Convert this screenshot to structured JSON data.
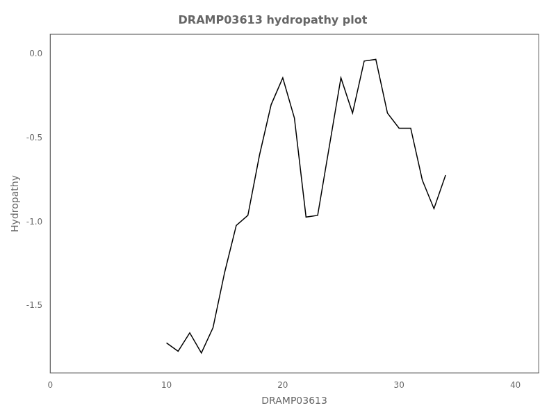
{
  "chart_data": {
    "type": "line",
    "title": "DRAMP03613 hydropathy plot",
    "xlabel": "DRAMP03613",
    "ylabel": "Hydropathy",
    "x": [
      10,
      11,
      12,
      13,
      14,
      15,
      16,
      17,
      18,
      19,
      20,
      21,
      22,
      23,
      24,
      25,
      26,
      27,
      28,
      29,
      30,
      31,
      32,
      33,
      34
    ],
    "values": [
      -1.72,
      -1.77,
      -1.66,
      -1.78,
      -1.63,
      -1.3,
      -1.02,
      -0.96,
      -0.6,
      -0.3,
      -0.14,
      -0.38,
      -0.97,
      -0.96,
      -0.55,
      -0.14,
      -0.35,
      -0.04,
      -0.03,
      -0.35,
      -0.44,
      -0.44,
      -0.75,
      -0.92,
      -0.72
    ],
    "color": "#000000",
    "xlim": [
      0,
      42
    ],
    "xticks": [
      0,
      10,
      20,
      30,
      40
    ],
    "ylim": [
      -1.9,
      0.12
    ],
    "yticks": [
      {
        "value": 0,
        "label": "0.0"
      },
      -0.5,
      {
        "value": -1,
        "label": "-1.0"
      },
      -1.5
    ],
    "grid": false
  }
}
